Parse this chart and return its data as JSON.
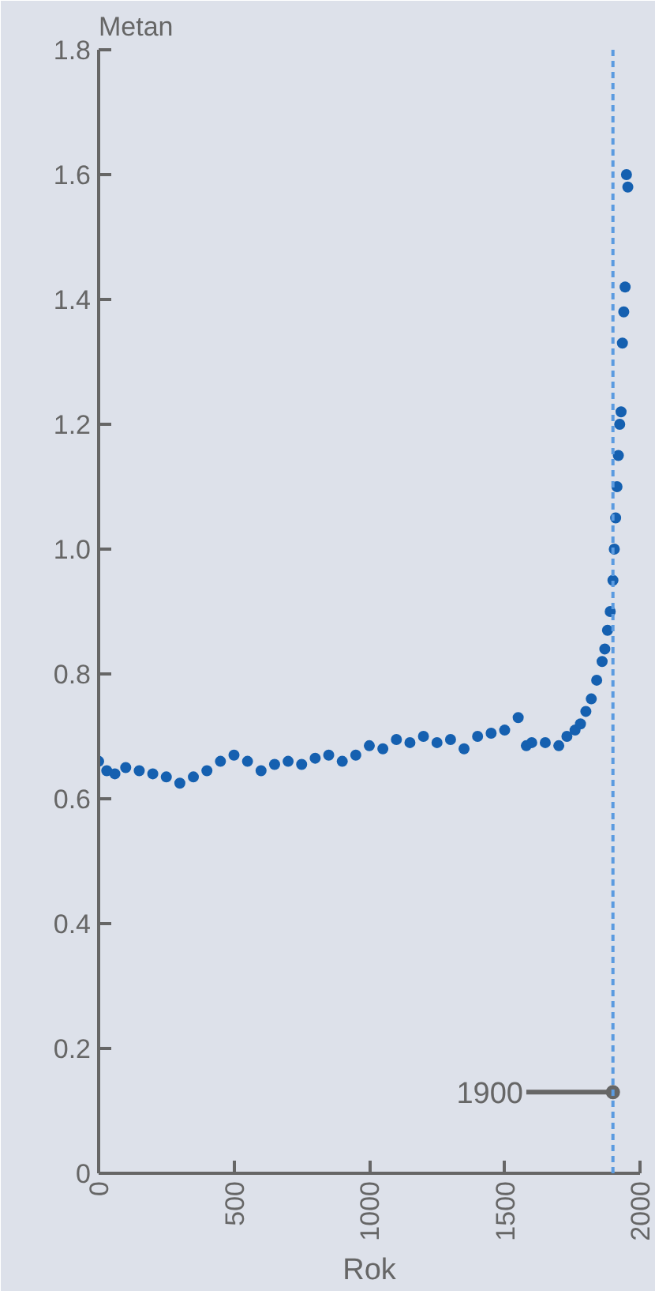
{
  "chart_data": {
    "type": "scatter",
    "ylabel": "Metan",
    "xlabel": "Rok",
    "x": [
      0,
      30,
      60,
      100,
      150,
      200,
      250,
      300,
      350,
      400,
      450,
      500,
      550,
      600,
      650,
      700,
      750,
      800,
      850,
      900,
      950,
      1000,
      1050,
      1100,
      1150,
      1200,
      1250,
      1300,
      1350,
      1400,
      1450,
      1500,
      1550,
      1580,
      1600,
      1650,
      1700,
      1730,
      1760,
      1780,
      1800,
      1820,
      1840,
      1860,
      1870,
      1880,
      1890,
      1900,
      1905,
      1910,
      1915,
      1920,
      1925,
      1930,
      1935,
      1940,
      1945,
      1950,
      1955
    ],
    "series": [
      {
        "color": "#1560b0",
        "values": [
          0.66,
          0.645,
          0.64,
          0.65,
          0.645,
          0.64,
          0.635,
          0.625,
          0.635,
          0.645,
          0.66,
          0.67,
          0.66,
          0.645,
          0.655,
          0.66,
          0.655,
          0.665,
          0.67,
          0.66,
          0.67,
          0.685,
          0.68,
          0.695,
          0.69,
          0.7,
          0.69,
          0.695,
          0.68,
          0.7,
          0.705,
          0.71,
          0.73,
          0.685,
          0.69,
          0.69,
          0.685,
          0.7,
          0.71,
          0.72,
          0.74,
          0.76,
          0.79,
          0.82,
          0.84,
          0.87,
          0.9,
          0.95,
          1.0,
          1.05,
          1.1,
          1.15,
          1.2,
          1.22,
          1.33,
          1.38,
          1.42,
          1.6,
          1.58
        ]
      }
    ],
    "xlim": [
      0,
      2000
    ],
    "ylim": [
      0,
      1.8
    ],
    "xticks": [
      0,
      500,
      1000,
      1500,
      2000
    ],
    "yticks": [
      0,
      {
        "value": 0.2,
        "label": "0.2"
      },
      {
        "value": 0.4,
        "label": "0.4"
      },
      {
        "value": 0.6,
        "label": "0.6"
      },
      {
        "value": 0.8,
        "label": "0.8"
      },
      {
        "value": 1.0,
        "label": "1.0"
      },
      {
        "value": 1.2,
        "label": "1.2"
      },
      {
        "value": 1.4,
        "label": "1.4"
      },
      {
        "value": 1.6,
        "label": "1.6"
      },
      {
        "value": 1.8,
        "label": "1.8"
      }
    ],
    "ref_lines": [
      {
        "axis": "x",
        "value": 1900,
        "color": "#5b9be0",
        "line_style": "dashed"
      }
    ],
    "annotations": [
      {
        "text": "1900",
        "x": 1900,
        "y": 0.13
      }
    ],
    "marker": "circle",
    "grid": false
  }
}
